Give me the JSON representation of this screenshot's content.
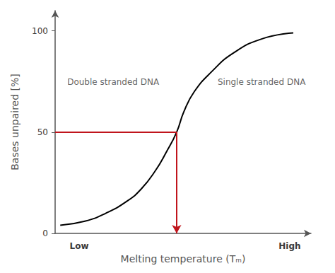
{
  "chart_data": {
    "type": "line",
    "x_label": "Melting temperature (Tₘ)",
    "y_label": "Bases unpaired [%]",
    "x": [
      2,
      11.6,
      19.9,
      28.2,
      33.7,
      39.2,
      43.4,
      47.5,
      50.3,
      54.4,
      61.3,
      69.6,
      80.7,
      93.1
    ],
    "values": [
      4,
      6,
      10,
      16,
      22,
      31,
      40,
      50,
      60,
      70,
      80,
      89,
      96,
      99
    ],
    "color": "#000000",
    "xlim": [
      0,
      100
    ],
    "xticks": [
      {
        "value": 9.4,
        "label": "Low"
      },
      {
        "value": 91.7,
        "label": "High"
      }
    ],
    "ylim": [
      0,
      110
    ],
    "yticks": [
      0,
      50,
      100
    ],
    "grid": false,
    "reference": {
      "x": 47.5,
      "y": 50,
      "color": "#c0141c"
    },
    "annotations": [
      {
        "text": "Double stranded DNA",
        "x": 22.7,
        "y": 74.6
      },
      {
        "text": "Single stranded DNA",
        "x": 80.7,
        "y": 74.6
      }
    ]
  }
}
